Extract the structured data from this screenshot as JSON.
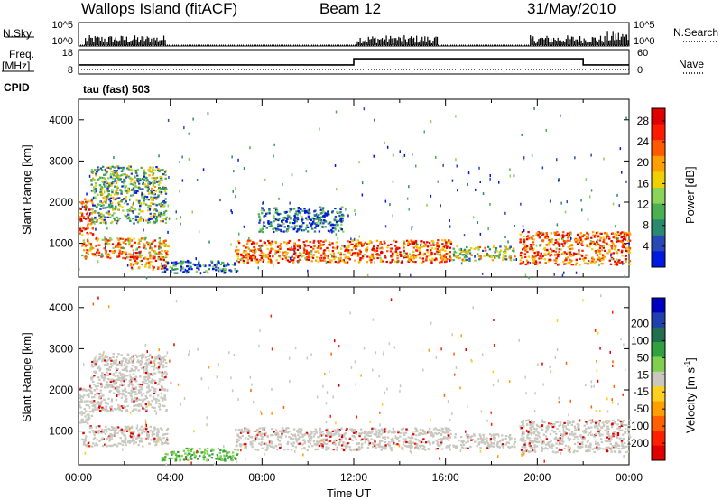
{
  "header": {
    "station": "Wallops Island (fitACF)",
    "beam": "Beam 12",
    "date": "31/May/2010"
  },
  "side_labels": {
    "nsky": "N.Sky",
    "nsearch": "N.Search",
    "freq": "Freq.",
    "freq_unit": "[MHz]",
    "nave": "Nave",
    "cpid": "CPID",
    "cpid_value": "tau (fast) 503"
  },
  "colors": {
    "power_scale": [
      "#0018e0",
      "#2848b8",
      "#2a8a70",
      "#4caf50",
      "#8cd35a",
      "#f0d000",
      "#ffa000",
      "#ff5a00",
      "#ff1a00",
      "#e00000"
    ],
    "velocity_scale": [
      "#0000c0",
      "#2040b0",
      "#207050",
      "#30a040",
      "#80d050",
      "#c8c8c0",
      "#ffd020",
      "#ffa000",
      "#ff6000",
      "#ff2000",
      "#e00000"
    ],
    "gray_scatter": "#c8c8c0"
  },
  "chart_data": [
    {
      "type": "line",
      "panel": "N.Sky / N.Search",
      "ylabel_left": "N.Sky",
      "ylabel_right": "N.Search",
      "yticks_left": [
        "10^5",
        "10^0"
      ],
      "yticks_right": [
        "10^5",
        "10^0"
      ],
      "log_scale": true,
      "active_intervals_hours": [
        [
          0.3,
          3.8
        ],
        [
          12.1,
          15.7
        ],
        [
          19.7,
          24.0
        ]
      ],
      "note": "sparse vertical activity bars"
    },
    {
      "type": "line",
      "panel": "Freq / Nave",
      "ylabel_left": "Freq. [MHz]",
      "ylabel_right": "Nave",
      "yticks_left": [
        "18",
        "8"
      ],
      "yticks_right": [
        "60",
        "0"
      ],
      "freq_series": {
        "name": "Freq.",
        "x_hours": [
          0,
          12,
          12,
          22,
          22,
          24
        ],
        "values": [
          11.5,
          11.5,
          14.5,
          14.5,
          11.5,
          11.5
        ]
      },
      "nave_series": {
        "name": "Nave",
        "style": "dotted",
        "value": 8
      }
    },
    {
      "type": "heatmap",
      "panel": "Power",
      "ylabel": "Slant Range [km]",
      "ylim": [
        180,
        4500
      ],
      "yticks": [
        1000,
        2000,
        3000,
        4000
      ],
      "xlim_hours": [
        0,
        24
      ],
      "colorbar_label": "Power [dB]",
      "colorbar_ticks": [
        "4",
        "8",
        "12",
        "16",
        "20",
        "24",
        "28"
      ],
      "colorbar_range": [
        0,
        30
      ],
      "echo_regions": [
        {
          "t": [
            0.1,
            3.9
          ],
          "range": [
            650,
            1150
          ],
          "level_db": 24
        },
        {
          "t": [
            0.0,
            0.6
          ],
          "range": [
            1200,
            2100
          ],
          "level_db": 26
        },
        {
          "t": [
            2.2,
            3.8
          ],
          "range": [
            380,
            700
          ],
          "level_db": 28
        },
        {
          "t": [
            3.6,
            6.9
          ],
          "range": [
            300,
            600
          ],
          "level_db": 8
        },
        {
          "t": [
            6.8,
            16.2
          ],
          "range": [
            550,
            1100
          ],
          "level_db": 26
        },
        {
          "t": [
            16.3,
            19.0
          ],
          "range": [
            600,
            950
          ],
          "level_db": 18
        },
        {
          "t": [
            19.2,
            24.0
          ],
          "range": [
            500,
            1300
          ],
          "level_db": 28
        },
        {
          "t": [
            0.5,
            3.8
          ],
          "range": [
            1500,
            2900
          ],
          "level_db": 14
        },
        {
          "t": [
            7.8,
            11.5
          ],
          "range": [
            1300,
            1900
          ],
          "level_db": 10
        }
      ]
    },
    {
      "type": "heatmap",
      "panel": "Velocity",
      "ylabel": "Slant Range [km]",
      "xlabel": "Time UT",
      "ylim": [
        180,
        4500
      ],
      "yticks": [
        1000,
        2000,
        3000,
        4000
      ],
      "xticks": [
        "00:00",
        "04:00",
        "08:00",
        "12:00",
        "16:00",
        "20:00",
        "00:00"
      ],
      "xlim_hours": [
        0,
        24
      ],
      "colorbar_label": "Velocity [m s^-1]",
      "colorbar_ticks": [
        "200",
        "100",
        "50",
        "15",
        "-15",
        "-50",
        "-100",
        "-200"
      ],
      "echo_regions": [
        {
          "t": [
            0.1,
            3.9
          ],
          "range": [
            650,
            1150
          ],
          "velocity": 0
        },
        {
          "t": [
            0.0,
            0.6
          ],
          "range": [
            1200,
            2100
          ],
          "velocity": 0
        },
        {
          "t": [
            3.6,
            6.9
          ],
          "range": [
            300,
            600
          ],
          "velocity": 60
        },
        {
          "t": [
            6.8,
            16.2
          ],
          "range": [
            550,
            1100
          ],
          "velocity": 0
        },
        {
          "t": [
            16.3,
            19.0
          ],
          "range": [
            600,
            950
          ],
          "velocity": 0
        },
        {
          "t": [
            19.2,
            24.0
          ],
          "range": [
            500,
            1300
          ],
          "velocity": 0
        },
        {
          "t": [
            0.5,
            3.8
          ],
          "range": [
            1500,
            2900
          ],
          "velocity": 0
        }
      ]
    }
  ]
}
